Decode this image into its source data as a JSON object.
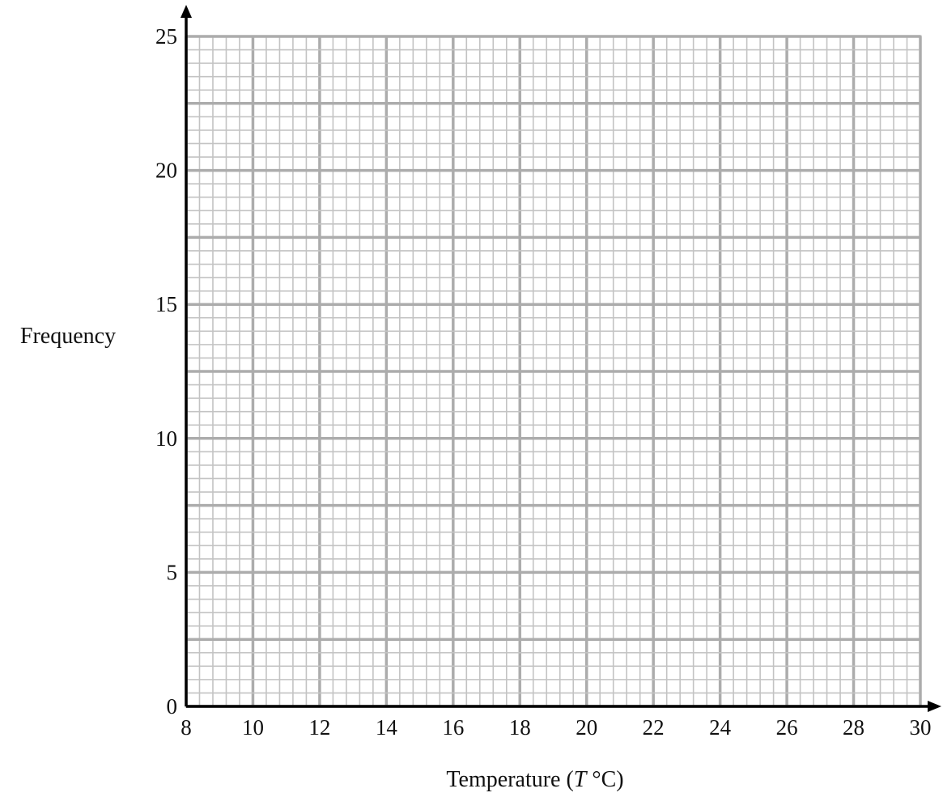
{
  "chart_data": {
    "type": "scatter",
    "xlabel": {
      "prefix": "Temperature (",
      "variable": "T",
      "suffix": " °C)"
    },
    "ylabel": "Frequency",
    "xlim": [
      8,
      30
    ],
    "ylim": [
      0,
      25
    ],
    "x_ticks": [
      8,
      10,
      12,
      14,
      16,
      18,
      20,
      22,
      24,
      26,
      28,
      30
    ],
    "y_ticks": [
      0,
      5,
      10,
      15,
      20,
      25
    ],
    "grid": {
      "x_minor": 0.4,
      "x_medium": 2,
      "y_minor": 0.5,
      "y_medium": 2.5
    },
    "series": [],
    "colors": {
      "grid": "#c3c3c3",
      "grid_major": "#acacac",
      "axis": "#000000",
      "text": "#111111"
    }
  }
}
